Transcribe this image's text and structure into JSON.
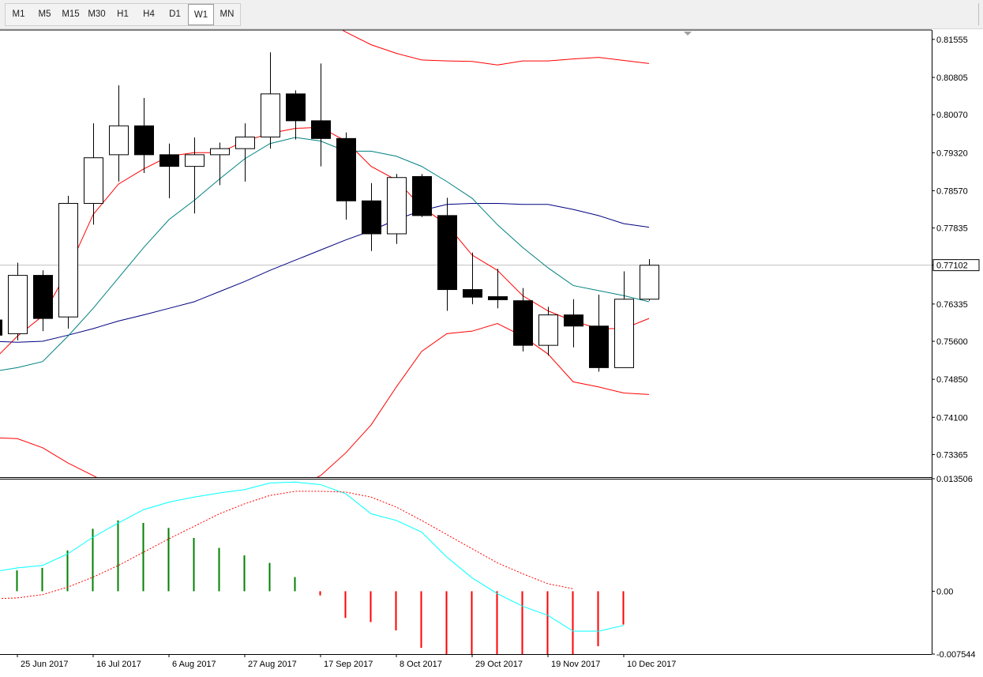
{
  "toolbar": {
    "timeframes": [
      "M1",
      "M5",
      "M15",
      "M30",
      "H1",
      "H4",
      "D1",
      "W1",
      "MN"
    ],
    "active": "W1"
  },
  "colors": {
    "bullish_body": "#ffffff",
    "bearish_body": "#000000",
    "candle_outline": "#000000",
    "bollinger_band": "#ff0000",
    "ma_fast": "#008080",
    "ma_slow": "#000080",
    "osc_signal_line": "#00ffff",
    "osc_dotted_line": "#ff0000",
    "hist_positive": "#008000",
    "hist_negative": "#ff0000",
    "grid_line": "#c0c0c0"
  },
  "chart_data": [
    {
      "type": "candlestick",
      "timeframe": "W1",
      "price_axis_ticks": [
        "0.81555",
        "0.80805",
        "0.80070",
        "0.79320",
        "0.78570",
        "0.77835",
        "0.77102",
        "0.76335",
        "0.75600",
        "0.74850",
        "0.74100",
        "0.73365"
      ],
      "current_price": "0.77102",
      "ylim": [
        0.7292,
        0.8174
      ],
      "candles": [
        {
          "o": 0.7602,
          "h": 0.7612,
          "l": 0.7572,
          "c": 0.7572
        },
        {
          "o": 0.7575,
          "h": 0.7715,
          "l": 0.7562,
          "c": 0.769
        },
        {
          "o": 0.769,
          "h": 0.77,
          "l": 0.758,
          "c": 0.7605
        },
        {
          "o": 0.7608,
          "h": 0.7847,
          "l": 0.7585,
          "c": 0.7832
        },
        {
          "o": 0.7832,
          "h": 0.799,
          "l": 0.779,
          "c": 0.7922
        },
        {
          "o": 0.7928,
          "h": 0.8065,
          "l": 0.7875,
          "c": 0.7985
        },
        {
          "o": 0.7985,
          "h": 0.804,
          "l": 0.7892,
          "c": 0.7928
        },
        {
          "o": 0.7928,
          "h": 0.795,
          "l": 0.7842,
          "c": 0.7905
        },
        {
          "o": 0.7905,
          "h": 0.7962,
          "l": 0.7812,
          "c": 0.7928
        },
        {
          "o": 0.7928,
          "h": 0.7952,
          "l": 0.7868,
          "c": 0.794
        },
        {
          "o": 0.794,
          "h": 0.799,
          "l": 0.7875,
          "c": 0.7963
        },
        {
          "o": 0.7963,
          "h": 0.813,
          "l": 0.794,
          "c": 0.8048
        },
        {
          "o": 0.8048,
          "h": 0.8055,
          "l": 0.7958,
          "c": 0.7995
        },
        {
          "o": 0.7995,
          "h": 0.8108,
          "l": 0.7905,
          "c": 0.796
        },
        {
          "o": 0.796,
          "h": 0.7972,
          "l": 0.78,
          "c": 0.7837
        },
        {
          "o": 0.7837,
          "h": 0.7872,
          "l": 0.7738,
          "c": 0.7772
        },
        {
          "o": 0.7772,
          "h": 0.789,
          "l": 0.7752,
          "c": 0.7883
        },
        {
          "o": 0.7885,
          "h": 0.789,
          "l": 0.7805,
          "c": 0.7808
        },
        {
          "o": 0.7808,
          "h": 0.7843,
          "l": 0.762,
          "c": 0.7662
        },
        {
          "o": 0.7662,
          "h": 0.7735,
          "l": 0.7633,
          "c": 0.7647
        },
        {
          "o": 0.7648,
          "h": 0.7703,
          "l": 0.7625,
          "c": 0.7642
        },
        {
          "o": 0.764,
          "h": 0.7665,
          "l": 0.754,
          "c": 0.7552
        },
        {
          "o": 0.7552,
          "h": 0.7628,
          "l": 0.7532,
          "c": 0.7612
        },
        {
          "o": 0.7612,
          "h": 0.7643,
          "l": 0.7548,
          "c": 0.759
        },
        {
          "o": 0.759,
          "h": 0.7652,
          "l": 0.75,
          "c": 0.7508
        },
        {
          "o": 0.7508,
          "h": 0.7698,
          "l": 0.7508,
          "c": 0.7643
        },
        {
          "o": 0.7643,
          "h": 0.7722,
          "l": 0.764,
          "c": 0.771
        }
      ],
      "bollinger_upper": [
        0.822,
        0.826,
        0.83,
        0.834,
        0.838,
        0.842,
        0.845,
        0.846,
        0.844,
        0.841,
        0.837,
        0.83,
        0.824,
        0.82,
        0.817,
        0.8145,
        0.8128,
        0.8115,
        0.8113,
        0.8112,
        0.8105,
        0.8113,
        0.8113,
        0.8117,
        0.812,
        0.8114,
        0.8108
      ],
      "bollinger_middle": [
        0.752,
        0.757,
        0.761,
        0.77,
        0.781,
        0.787,
        0.79,
        0.7925,
        0.7932,
        0.7932,
        0.7955,
        0.797,
        0.798,
        0.7982,
        0.7955,
        0.7905,
        0.7878,
        0.7825,
        0.779,
        0.773,
        0.77,
        0.765,
        0.762,
        0.76,
        0.7585,
        0.7585,
        0.7605
      ],
      "bollinger_lower": [
        0.737,
        0.7368,
        0.735,
        0.732,
        0.7295,
        0.727,
        0.725,
        0.724,
        0.7235,
        0.723,
        0.724,
        0.725,
        0.727,
        0.7295,
        0.734,
        0.7395,
        0.747,
        0.754,
        0.7575,
        0.758,
        0.7595,
        0.757,
        0.7535,
        0.748,
        0.747,
        0.7458,
        0.7455
      ],
      "ma_fast": [
        0.75,
        0.7508,
        0.752,
        0.757,
        0.7625,
        0.7685,
        0.7745,
        0.78,
        0.7838,
        0.788,
        0.792,
        0.795,
        0.7962,
        0.7955,
        0.7935,
        0.7935,
        0.7925,
        0.7905,
        0.7875,
        0.7842,
        0.779,
        0.7745,
        0.7705,
        0.767,
        0.766,
        0.765,
        0.7638
      ],
      "ma_slow": [
        0.756,
        0.7558,
        0.756,
        0.7572,
        0.7585,
        0.76,
        0.7612,
        0.7625,
        0.7638,
        0.7658,
        0.7678,
        0.77,
        0.772,
        0.774,
        0.776,
        0.7778,
        0.78,
        0.7818,
        0.783,
        0.7832,
        0.7832,
        0.783,
        0.783,
        0.782,
        0.7808,
        0.7792,
        0.7785
      ]
    },
    {
      "type": "histogram",
      "axis_ticks": [
        "0.013506",
        "0.00",
        "-0.007544"
      ],
      "ylim": [
        -0.007544,
        0.013506
      ],
      "histogram": [
        0.0025,
        0.0028,
        0.0049,
        0.0075,
        0.0085,
        0.0082,
        0.0076,
        0.0064,
        0.0052,
        0.0043,
        0.0034,
        0.0017,
        -0.0005,
        -0.0032,
        -0.0037,
        -0.0047,
        -0.0068,
        -0.0082,
        -0.0089,
        -0.0089,
        -0.0084,
        -0.0082,
        -0.0077,
        -0.0066,
        -0.004
      ],
      "signal_line": [
        0.0023,
        0.0028,
        0.0031,
        0.0045,
        0.0065,
        0.0082,
        0.0098,
        0.0107,
        0.0113,
        0.0118,
        0.0122,
        0.013,
        0.0131,
        0.0128,
        0.0117,
        0.0093,
        0.0085,
        0.0071,
        0.0041,
        0.0016,
        -0.0003,
        -0.0018,
        -0.0029,
        -0.0048,
        -0.0048,
        -0.0041
      ],
      "dotted_line": [
        -0.0009,
        -0.0008,
        -0.0004,
        0.0005,
        0.0017,
        0.0031,
        0.0047,
        0.0063,
        0.0078,
        0.0093,
        0.0105,
        0.0115,
        0.012,
        0.012,
        0.0119,
        0.0113,
        0.0101,
        0.0085,
        0.0068,
        0.0051,
        0.0034,
        0.0021,
        0.0009,
        0.0003
      ]
    }
  ],
  "time_axis_labels": [
    "25 Jun 2017",
    "16 Jul 2017",
    "6 Aug 2017",
    "27 Aug 2017",
    "17 Sep 2017",
    "8 Oct 2017",
    "29 Oct 2017",
    "19 Nov 2017",
    "10 Dec 2017"
  ]
}
